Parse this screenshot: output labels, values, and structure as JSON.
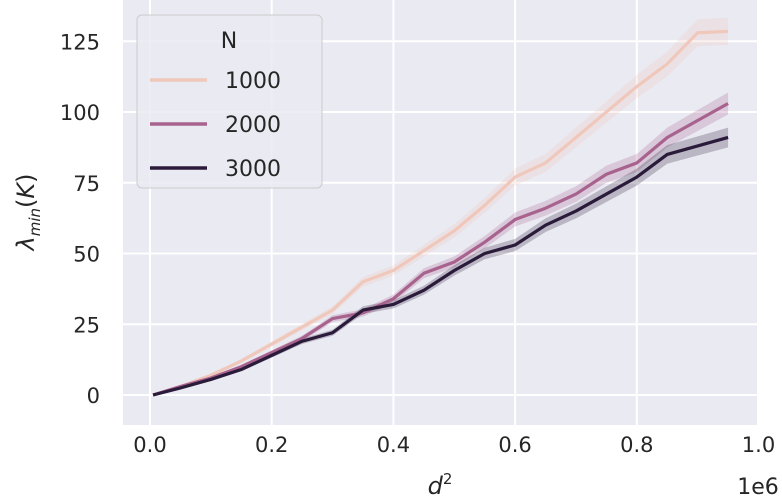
{
  "chart_data": {
    "type": "line",
    "xlabel": "d²",
    "ylabel": "λmin(K)",
    "x_offset_label": "1e6",
    "xlim": [
      -0.05,
      1.0
    ],
    "ylim": [
      -10,
      140
    ],
    "xticks": [
      0.0,
      0.2,
      0.4,
      0.6,
      0.8,
      1.0
    ],
    "xtick_labels": [
      "0.0",
      "0.2",
      "0.4",
      "0.6",
      "0.8",
      "1.0"
    ],
    "yticks": [
      0,
      25,
      50,
      75,
      100,
      125
    ],
    "ytick_labels": [
      "0",
      "25",
      "50",
      "75",
      "100",
      "125"
    ],
    "grid": true,
    "legend": {
      "title": "N",
      "placement": "top-left"
    },
    "x": [
      0.005,
      0.05,
      0.1,
      0.15,
      0.2,
      0.25,
      0.3,
      0.35,
      0.4,
      0.45,
      0.5,
      0.55,
      0.6,
      0.65,
      0.7,
      0.75,
      0.8,
      0.85,
      0.9,
      0.95
    ],
    "series": [
      {
        "name": "1000",
        "color": "#f0c8bb",
        "values": [
          0,
          3,
          7,
          12,
          18,
          24,
          30,
          40,
          44,
          51,
          58,
          67,
          77,
          82,
          91,
          100,
          109,
          117,
          128,
          128.5
        ]
      },
      {
        "name": "2000",
        "color": "#a8628e",
        "values": [
          0,
          3,
          6,
          10,
          15,
          20,
          27,
          29,
          34,
          43,
          47,
          54,
          62,
          66,
          71,
          78,
          82,
          91,
          97,
          103
        ]
      },
      {
        "name": "3000",
        "color": "#2b1b3b",
        "values": [
          0,
          2.5,
          5.5,
          9,
          14,
          19,
          22,
          30,
          32,
          37,
          44,
          50,
          53,
          60,
          65,
          71,
          77,
          85,
          88,
          91
        ]
      }
    ]
  }
}
